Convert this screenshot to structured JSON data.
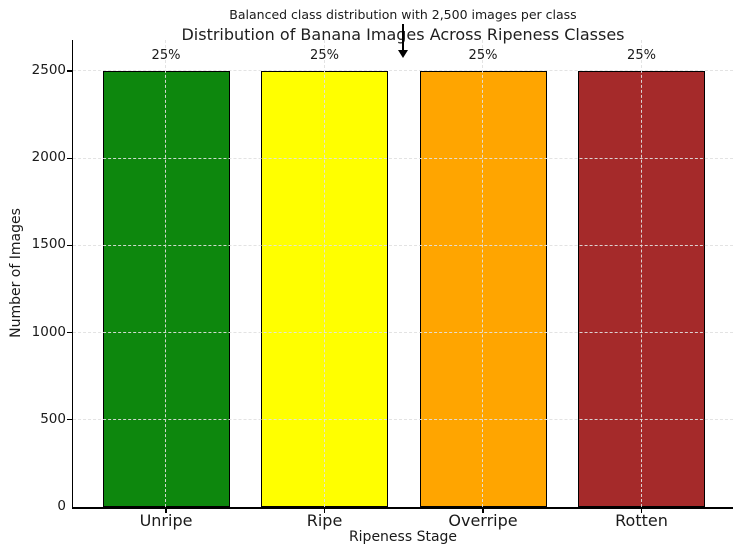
{
  "chart_data": {
    "type": "bar",
    "title": "Distribution of Banana Images Across Ripeness Classes",
    "annotation_text": "Balanced class distribution with 2,500 images per class",
    "xlabel": "Ripeness Stage",
    "ylabel": "Number of Images",
    "categories": [
      "Unripe",
      "Ripe",
      "Overripe",
      "Rotten"
    ],
    "values": [
      2500,
      2500,
      2500,
      2500
    ],
    "bar_labels": [
      "25%",
      "25%",
      "25%",
      "25%"
    ],
    "bar_colors": [
      "#0d870d",
      "#ffff00",
      "#ffa500",
      "#a52a2a"
    ],
    "bar_edge_color": "#000000",
    "yticks": [
      0,
      500,
      1000,
      1500,
      2000,
      2500
    ],
    "ylim": [
      0,
      2680
    ],
    "grid": {
      "visible": true,
      "style": "dashed",
      "axes": "both"
    },
    "background_color": "#ffffff",
    "text_color": "#1a1a1a"
  }
}
